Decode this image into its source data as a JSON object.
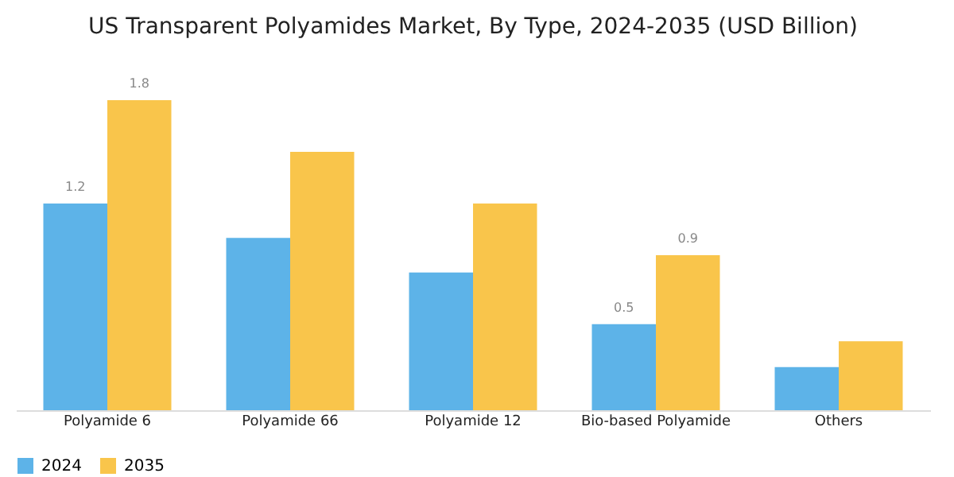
{
  "chart_data": {
    "type": "bar",
    "title": "US Transparent Polyamides Market, By Type, 2024-2035 (USD Billion)",
    "categories": [
      "Polyamide 6",
      "Polyamide 66",
      "Polyamide 12",
      "Bio-based Polyamide",
      "Others"
    ],
    "series": [
      {
        "name": "2024",
        "color": "#5db3e8",
        "values": [
          1.2,
          1.0,
          0.8,
          0.5,
          0.25
        ],
        "value_labels": [
          "1.2",
          null,
          null,
          "0.5",
          null
        ]
      },
      {
        "name": "2035",
        "color": "#f9c54b",
        "values": [
          1.8,
          1.5,
          1.2,
          0.9,
          0.4
        ],
        "value_labels": [
          "1.8",
          null,
          null,
          "0.9",
          null
        ]
      }
    ],
    "legend": "bottom",
    "grid": false
  }
}
